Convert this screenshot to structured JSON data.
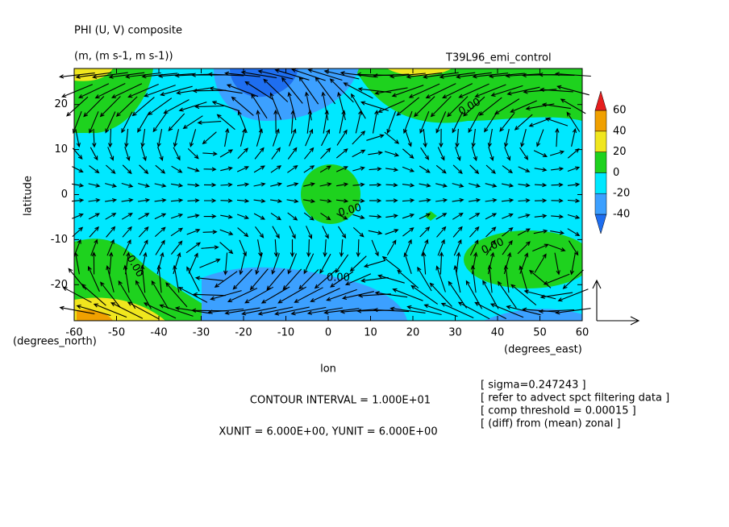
{
  "chart_data": {
    "type": "contour",
    "title": "PHI (U, V) composite",
    "subtitle": "(m, (m s-1, m s-1))",
    "run_label": "T39L96_emi_control",
    "x_label": "lon",
    "y_label": "latitude",
    "x_unit": "(degrees_east)",
    "y_unit": "(degrees_north)",
    "xlim": [
      -60,
      60
    ],
    "xticks": [
      -60,
      -50,
      -40,
      -30,
      -20,
      -10,
      0,
      10,
      20,
      30,
      40,
      50,
      60
    ],
    "ylim": [
      -28,
      28
    ],
    "yticks": [
      -20,
      -10,
      0,
      10,
      20
    ],
    "levels": [
      -40,
      -20,
      0,
      20,
      40,
      60
    ],
    "colors": [
      "#1e6ef0",
      "#3ca0ff",
      "#00e8ff",
      "#1ed21e",
      "#f0e61e",
      "#f0a000",
      "#e61e1e"
    ],
    "contour_labels": [
      "0.00",
      "0.00",
      "0.00",
      "0.00",
      "0.00"
    ],
    "contour_interval": "CONTOUR INTERVAL = 1.000E+01",
    "vector_units": "XUNIT = 6.000E+00, YUNIT = 6.000E+00",
    "notes": [
      "[ sigma=0.247243 ]",
      "[ refer to advect spct filtering data ]",
      "[ comp threshold = 0.00015 ]",
      "[ (diff) from (mean) zonal ]"
    ]
  }
}
